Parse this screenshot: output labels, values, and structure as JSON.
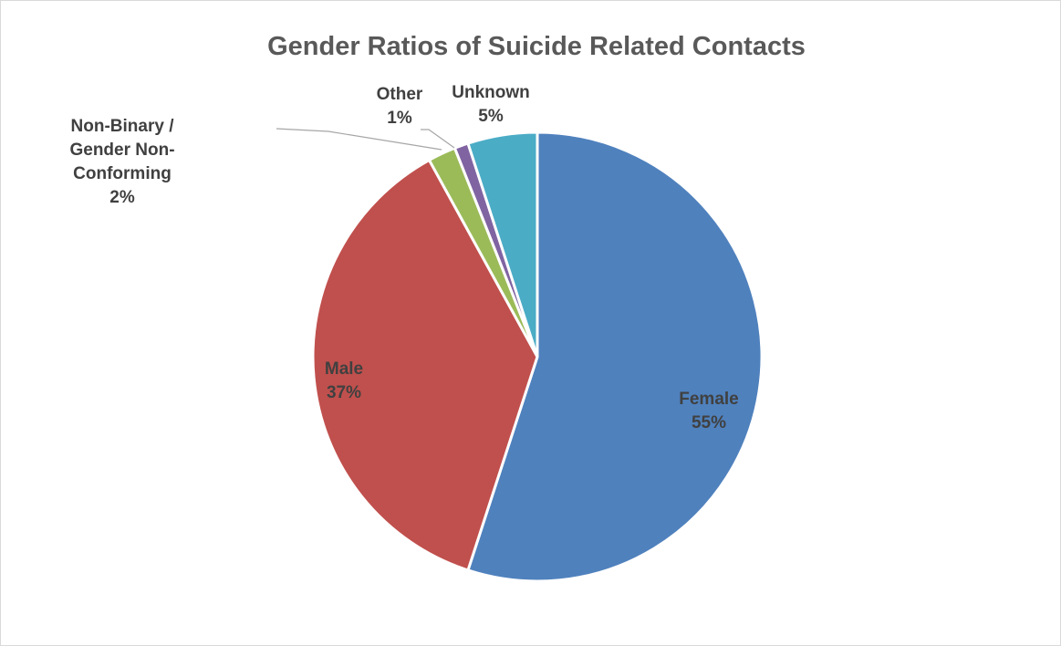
{
  "chart_data": {
    "type": "pie",
    "title": "Gender Ratios of Suicide Related Contacts",
    "slices": [
      {
        "category_lines": [
          "Female"
        ],
        "value": 55,
        "label": "55%",
        "color": "#4f81bd"
      },
      {
        "category_lines": [
          "Male"
        ],
        "value": 37,
        "label": "37%",
        "color": "#c0504d"
      },
      {
        "category_lines": [
          "Non-Binary /",
          "Gender Non-",
          "Conforming"
        ],
        "value": 2,
        "label": "2%",
        "color": "#9bbb59"
      },
      {
        "category_lines": [
          "Other"
        ],
        "value": 1,
        "label": "1%",
        "color": "#8064a2"
      },
      {
        "category_lines": [
          "Unknown"
        ],
        "value": 5,
        "label": "5%",
        "color": "#4bacc6"
      }
    ]
  }
}
